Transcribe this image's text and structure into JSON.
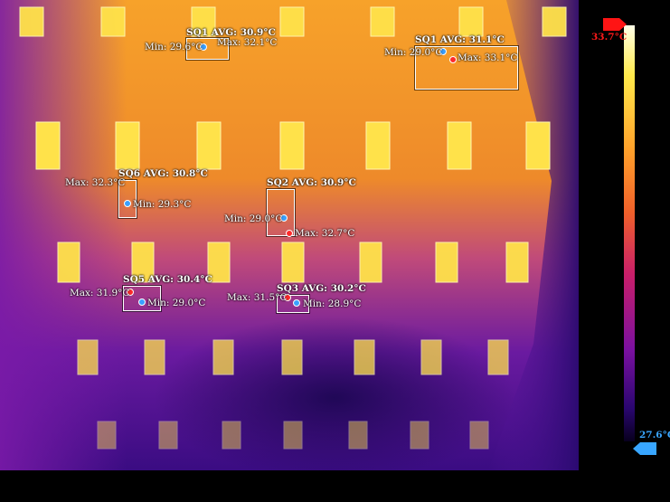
{
  "scale": {
    "max_label": "33.7°C",
    "min_label": "27.6°C",
    "max_color": "#ff1a1a",
    "min_color": "#3aa6ff"
  },
  "spots": [
    {
      "id": "SQ1a",
      "title": "SQ1 AVG: 30.9°C",
      "min": "Min: 29.6°C",
      "max": "Max: 32.1°C"
    },
    {
      "id": "SQ1b",
      "title": "SQ1 AVG: 31.1°C",
      "min": "Min: 29.0°C",
      "max": "Max: 33.1°C"
    },
    {
      "id": "SQ6",
      "title": "SQ6 AVG: 30.8°C",
      "min": "Min: 29.3°C",
      "max": "Max: 32.3°C"
    },
    {
      "id": "SQ2",
      "title": "SQ2 AVG: 30.9°C",
      "min": "Min: 29.0°C",
      "max": "Max: 32.7°C"
    },
    {
      "id": "SQ5",
      "title": "SQ5 AVG: 30.4°C",
      "min": "Min: 29.0°C",
      "max": "Max: 31.9°C"
    },
    {
      "id": "SQ3",
      "title": "SQ3 AVG: 30.2°C",
      "min": "Min: 28.9°C",
      "max": "Max: 31.5°C"
    }
  ]
}
